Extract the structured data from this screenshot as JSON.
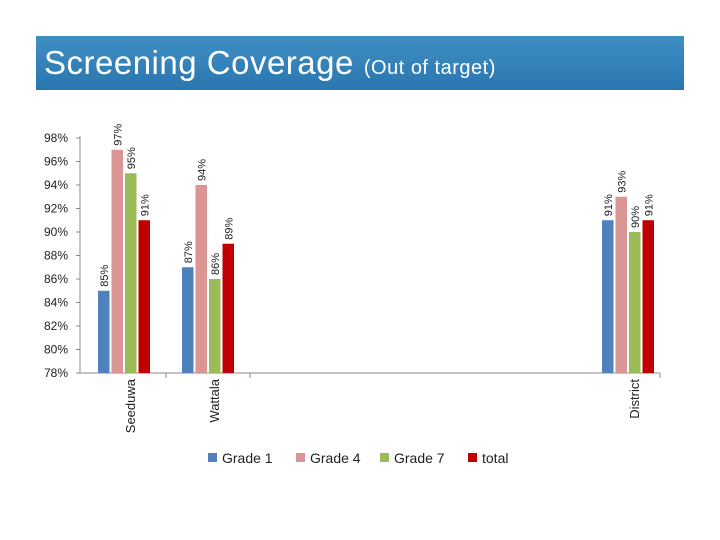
{
  "title": {
    "main": "Screening Coverage",
    "sub": "(Out of target)"
  },
  "chart_data": {
    "type": "bar",
    "title": "Screening Coverage (Out of target)",
    "categories": [
      "Seeduwa",
      "Wattala",
      "District"
    ],
    "series": [
      {
        "name": "Grade 1",
        "color": "#4f81bd",
        "values": [
          85,
          87,
          91
        ]
      },
      {
        "name": "Grade 4",
        "color": "#d99694",
        "values": [
          97,
          94,
          93
        ]
      },
      {
        "name": "Grade 7",
        "color": "#9bbb59",
        "values": [
          95,
          86,
          90
        ]
      },
      {
        "name": "total",
        "color": "#c00000",
        "values": [
          91,
          89,
          91
        ]
      }
    ],
    "ylim": [
      78,
      98
    ],
    "yticks": [
      78,
      80,
      82,
      84,
      86,
      88,
      90,
      92,
      94,
      96,
      98
    ],
    "ytick_format": "%",
    "xlabel": "",
    "ylabel": "",
    "grid": false,
    "legend": "bottom"
  }
}
